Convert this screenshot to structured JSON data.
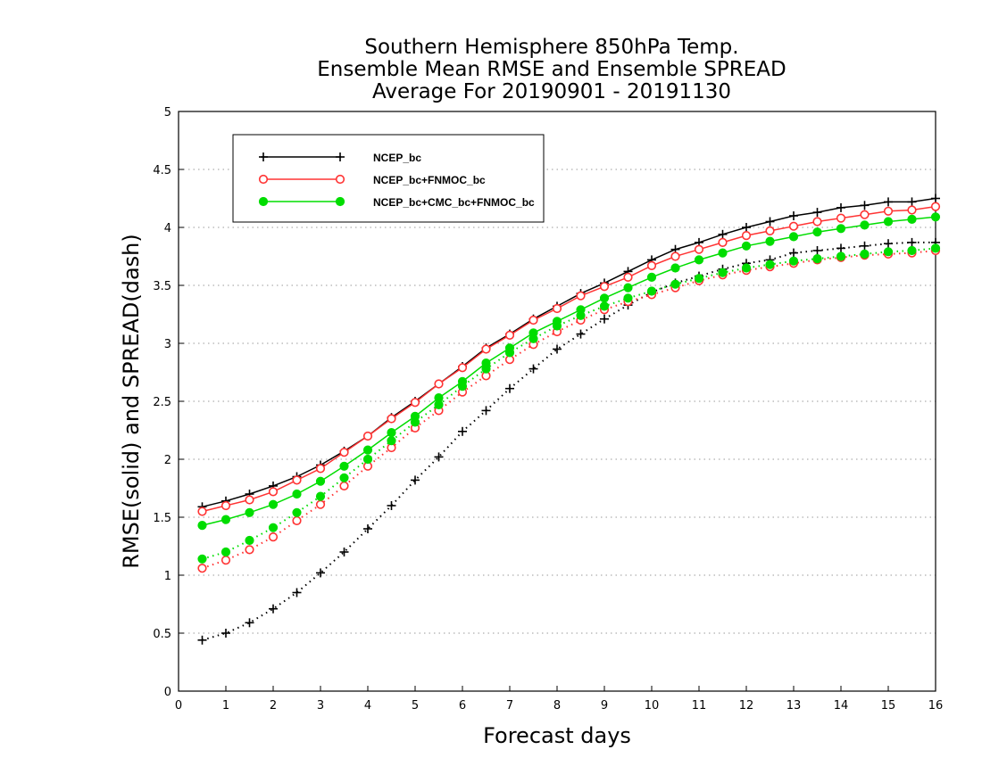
{
  "chart_data": {
    "type": "line",
    "title": [
      "Southern Hemisphere 850hPa Temp.",
      "Ensemble Mean RMSE and Ensemble SPREAD",
      "Average For 20190901 - 20191130"
    ],
    "xlabel": "Forecast days",
    "ylabel": "RMSE(solid) and SPREAD(dash)",
    "xlim": [
      0,
      16
    ],
    "ylim": [
      0,
      5
    ],
    "x_ticks": [
      0,
      1,
      2,
      3,
      4,
      5,
      6,
      7,
      8,
      9,
      10,
      11,
      12,
      13,
      14,
      15,
      16
    ],
    "x_tick_labels": [
      "0",
      "1",
      "2",
      "3",
      "4",
      "5",
      "6",
      "7",
      "8",
      "9",
      "10",
      "11",
      "12",
      "13",
      "14",
      "15",
      "16"
    ],
    "y_ticks": [
      0,
      0.5,
      1,
      1.5,
      2,
      2.5,
      3,
      3.5,
      4,
      4.5,
      5
    ],
    "y_tick_labels": [
      "0",
      "0.5",
      "1",
      "1.5",
      "2",
      "2.5",
      "3",
      "3.5",
      "4",
      "4.5",
      "5"
    ],
    "grid": "horizontal dotted",
    "legend_position": "top-left",
    "x": [
      0.5,
      1,
      1.5,
      2,
      2.5,
      3,
      3.5,
      4,
      4.5,
      5,
      5.5,
      6,
      6.5,
      7,
      7.5,
      8,
      8.5,
      9,
      9.5,
      10,
      10.5,
      11,
      11.5,
      12,
      12.5,
      13,
      13.5,
      14,
      14.5,
      15,
      15.5,
      16
    ],
    "series": [
      {
        "name": "NCEP_bc",
        "color": "#000000",
        "marker": "plus",
        "rmse": [
          1.59,
          1.64,
          1.7,
          1.77,
          1.85,
          1.95,
          2.07,
          2.2,
          2.36,
          2.5,
          2.65,
          2.8,
          2.96,
          3.08,
          3.21,
          3.32,
          3.43,
          3.52,
          3.62,
          3.72,
          3.81,
          3.87,
          3.94,
          4.0,
          4.05,
          4.1,
          4.13,
          4.17,
          4.19,
          4.22,
          4.22,
          4.25
        ],
        "spread": [
          0.44,
          0.5,
          0.59,
          0.71,
          0.85,
          1.02,
          1.2,
          1.4,
          1.6,
          1.82,
          2.02,
          2.24,
          2.42,
          2.61,
          2.78,
          2.95,
          3.08,
          3.21,
          3.33,
          3.44,
          3.52,
          3.58,
          3.64,
          3.69,
          3.72,
          3.78,
          3.8,
          3.82,
          3.84,
          3.86,
          3.87,
          3.87
        ]
      },
      {
        "name": "NCEP_bc+FNMOC_bc",
        "color": "#ff3333",
        "marker": "open-circle",
        "rmse": [
          1.55,
          1.6,
          1.65,
          1.72,
          1.82,
          1.92,
          2.06,
          2.2,
          2.35,
          2.49,
          2.65,
          2.79,
          2.95,
          3.07,
          3.2,
          3.3,
          3.41,
          3.49,
          3.57,
          3.67,
          3.75,
          3.81,
          3.87,
          3.93,
          3.97,
          4.01,
          4.05,
          4.08,
          4.11,
          4.14,
          4.15,
          4.18
        ],
        "spread": [
          1.06,
          1.13,
          1.22,
          1.33,
          1.47,
          1.61,
          1.77,
          1.94,
          2.1,
          2.27,
          2.42,
          2.58,
          2.72,
          2.86,
          2.99,
          3.1,
          3.2,
          3.29,
          3.36,
          3.42,
          3.48,
          3.54,
          3.59,
          3.63,
          3.66,
          3.69,
          3.72,
          3.74,
          3.76,
          3.77,
          3.78,
          3.8
        ]
      },
      {
        "name": "NCEP_bc+CMC_bc+FNMOC_bc",
        "color": "#00dd00",
        "marker": "filled-circle",
        "rmse": [
          1.43,
          1.48,
          1.54,
          1.61,
          1.7,
          1.81,
          1.94,
          2.08,
          2.23,
          2.37,
          2.53,
          2.67,
          2.83,
          2.96,
          3.09,
          3.19,
          3.29,
          3.39,
          3.48,
          3.57,
          3.65,
          3.72,
          3.78,
          3.84,
          3.88,
          3.92,
          3.96,
          3.99,
          4.02,
          4.05,
          4.07,
          4.09
        ],
        "spread": [
          1.14,
          1.2,
          1.3,
          1.41,
          1.54,
          1.68,
          1.84,
          2.0,
          2.16,
          2.32,
          2.47,
          2.63,
          2.78,
          2.92,
          3.04,
          3.15,
          3.24,
          3.32,
          3.39,
          3.45,
          3.51,
          3.56,
          3.61,
          3.65,
          3.68,
          3.71,
          3.73,
          3.75,
          3.77,
          3.79,
          3.8,
          3.82
        ]
      }
    ]
  }
}
